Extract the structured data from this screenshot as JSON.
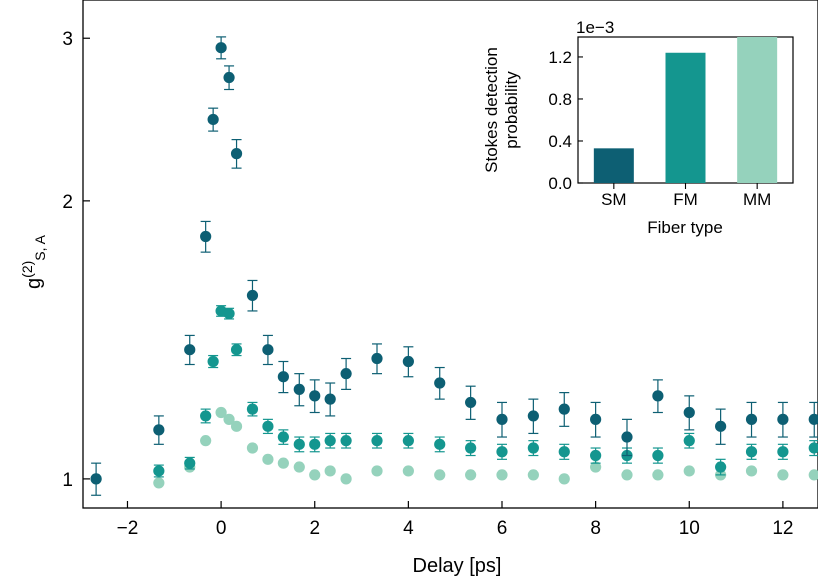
{
  "chart_data": [
    {
      "type": "scatter",
      "xlabel": "Delay [ps]",
      "ylabel_base": "g",
      "ylabel_sup": "(2)",
      "ylabel_sub": "S, A",
      "xlim": [
        -2.95,
        12.75
      ],
      "ylim": [
        0.93,
        3.3
      ],
      "yscale": "log",
      "x_ticks": [
        -2,
        0,
        2,
        4,
        6,
        8,
        10,
        12
      ],
      "x_tick_labels": [
        "−2",
        "0",
        "2",
        "4",
        "6",
        "8",
        "10",
        "12"
      ],
      "y_ticks": [
        1,
        2,
        3
      ],
      "y_tick_labels": [
        "1",
        "2",
        "3"
      ],
      "grid": false,
      "series": [
        {
          "color": "#0d5f73",
          "points": [
            {
              "x": -2.67,
              "y": 1.0,
              "err": 0.04
            },
            {
              "x": -1.33,
              "y": 1.13,
              "err": 0.04
            },
            {
              "x": -0.67,
              "y": 1.38,
              "err": 0.05
            },
            {
              "x": -0.33,
              "y": 1.83,
              "err": 0.07
            },
            {
              "x": -0.17,
              "y": 2.45,
              "err": 0.07
            },
            {
              "x": 0.0,
              "y": 2.93,
              "err": 0.08
            },
            {
              "x": 0.17,
              "y": 2.72,
              "err": 0.08
            },
            {
              "x": 0.33,
              "y": 2.25,
              "err": 0.08
            },
            {
              "x": 0.67,
              "y": 1.58,
              "err": 0.06
            },
            {
              "x": 1.0,
              "y": 1.38,
              "err": 0.05
            },
            {
              "x": 1.33,
              "y": 1.29,
              "err": 0.05
            },
            {
              "x": 1.67,
              "y": 1.25,
              "err": 0.05
            },
            {
              "x": 2.0,
              "y": 1.23,
              "err": 0.05
            },
            {
              "x": 2.33,
              "y": 1.22,
              "err": 0.05
            },
            {
              "x": 2.67,
              "y": 1.3,
              "err": 0.05
            },
            {
              "x": 3.33,
              "y": 1.35,
              "err": 0.05
            },
            {
              "x": 4.0,
              "y": 1.34,
              "err": 0.05
            },
            {
              "x": 4.67,
              "y": 1.27,
              "err": 0.05
            },
            {
              "x": 5.33,
              "y": 1.21,
              "err": 0.05
            },
            {
              "x": 6.0,
              "y": 1.16,
              "err": 0.05
            },
            {
              "x": 6.67,
              "y": 1.17,
              "err": 0.05
            },
            {
              "x": 7.33,
              "y": 1.19,
              "err": 0.05
            },
            {
              "x": 8.0,
              "y": 1.16,
              "err": 0.05
            },
            {
              "x": 8.67,
              "y": 1.11,
              "err": 0.05
            },
            {
              "x": 9.33,
              "y": 1.23,
              "err": 0.05
            },
            {
              "x": 10.0,
              "y": 1.18,
              "err": 0.05
            },
            {
              "x": 10.67,
              "y": 1.14,
              "err": 0.05
            },
            {
              "x": 11.33,
              "y": 1.16,
              "err": 0.05
            },
            {
              "x": 12.0,
              "y": 1.16,
              "err": 0.05
            },
            {
              "x": 12.67,
              "y": 1.16,
              "err": 0.05
            }
          ]
        },
        {
          "color": "#14968f",
          "points": [
            {
              "x": -1.33,
              "y": 1.02,
              "err": 0.015
            },
            {
              "x": -0.67,
              "y": 1.04,
              "err": 0.015
            },
            {
              "x": -0.33,
              "y": 1.17,
              "err": 0.02
            },
            {
              "x": -0.17,
              "y": 1.34,
              "err": 0.02
            },
            {
              "x": 0.0,
              "y": 1.52,
              "err": 0.02
            },
            {
              "x": 0.17,
              "y": 1.51,
              "err": 0.02
            },
            {
              "x": 0.33,
              "y": 1.38,
              "err": 0.02
            },
            {
              "x": 0.67,
              "y": 1.19,
              "err": 0.02
            },
            {
              "x": 1.0,
              "y": 1.14,
              "err": 0.02
            },
            {
              "x": 1.33,
              "y": 1.11,
              "err": 0.02
            },
            {
              "x": 1.67,
              "y": 1.09,
              "err": 0.02
            },
            {
              "x": 2.0,
              "y": 1.09,
              "err": 0.02
            },
            {
              "x": 2.33,
              "y": 1.1,
              "err": 0.02
            },
            {
              "x": 2.67,
              "y": 1.1,
              "err": 0.02
            },
            {
              "x": 3.33,
              "y": 1.1,
              "err": 0.02
            },
            {
              "x": 4.0,
              "y": 1.1,
              "err": 0.02
            },
            {
              "x": 4.67,
              "y": 1.09,
              "err": 0.02
            },
            {
              "x": 5.33,
              "y": 1.08,
              "err": 0.02
            },
            {
              "x": 6.0,
              "y": 1.07,
              "err": 0.02
            },
            {
              "x": 6.67,
              "y": 1.08,
              "err": 0.02
            },
            {
              "x": 7.33,
              "y": 1.07,
              "err": 0.02
            },
            {
              "x": 8.0,
              "y": 1.06,
              "err": 0.02
            },
            {
              "x": 8.67,
              "y": 1.06,
              "err": 0.02
            },
            {
              "x": 9.33,
              "y": 1.06,
              "err": 0.02
            },
            {
              "x": 10.0,
              "y": 1.1,
              "err": 0.02
            },
            {
              "x": 10.67,
              "y": 1.03,
              "err": 0.02
            },
            {
              "x": 11.33,
              "y": 1.07,
              "err": 0.02
            },
            {
              "x": 12.0,
              "y": 1.07,
              "err": 0.02
            },
            {
              "x": 12.67,
              "y": 1.08,
              "err": 0.02
            }
          ]
        },
        {
          "color": "#95d2bc",
          "points": [
            {
              "x": -2.67,
              "y": 1.0,
              "err": 0
            },
            {
              "x": -1.33,
              "y": 0.99,
              "err": 0
            },
            {
              "x": -0.67,
              "y": 1.03,
              "err": 0
            },
            {
              "x": -0.33,
              "y": 1.1,
              "err": 0
            },
            {
              "x": 0.0,
              "y": 1.18,
              "err": 0
            },
            {
              "x": 0.17,
              "y": 1.16,
              "err": 0
            },
            {
              "x": 0.33,
              "y": 1.14,
              "err": 0
            },
            {
              "x": 0.67,
              "y": 1.08,
              "err": 0
            },
            {
              "x": 1.0,
              "y": 1.05,
              "err": 0
            },
            {
              "x": 1.33,
              "y": 1.04,
              "err": 0
            },
            {
              "x": 1.67,
              "y": 1.03,
              "err": 0
            },
            {
              "x": 2.0,
              "y": 1.01,
              "err": 0
            },
            {
              "x": 2.33,
              "y": 1.02,
              "err": 0
            },
            {
              "x": 2.67,
              "y": 1.0,
              "err": 0
            },
            {
              "x": 3.33,
              "y": 1.02,
              "err": 0
            },
            {
              "x": 4.0,
              "y": 1.02,
              "err": 0
            },
            {
              "x": 4.67,
              "y": 1.01,
              "err": 0
            },
            {
              "x": 5.33,
              "y": 1.01,
              "err": 0
            },
            {
              "x": 6.0,
              "y": 1.01,
              "err": 0
            },
            {
              "x": 6.67,
              "y": 1.01,
              "err": 0
            },
            {
              "x": 7.33,
              "y": 1.0,
              "err": 0
            },
            {
              "x": 8.0,
              "y": 1.03,
              "err": 0
            },
            {
              "x": 8.67,
              "y": 1.01,
              "err": 0
            },
            {
              "x": 9.33,
              "y": 1.01,
              "err": 0
            },
            {
              "x": 10.0,
              "y": 1.02,
              "err": 0
            },
            {
              "x": 10.67,
              "y": 1.01,
              "err": 0
            },
            {
              "x": 11.33,
              "y": 1.02,
              "err": 0
            },
            {
              "x": 12.0,
              "y": 1.01,
              "err": 0
            },
            {
              "x": 12.67,
              "y": 1.01,
              "err": 0
            }
          ]
        }
      ]
    },
    {
      "type": "bar",
      "categories": [
        "SM",
        "FM",
        "MM"
      ],
      "values": [
        0.33,
        1.24,
        1.39
      ],
      "colors": [
        "#0d5f73",
        "#14968f",
        "#95d2bc"
      ],
      "xlabel": "Fiber type",
      "ylabel_line1": "Stokes detection",
      "ylabel_line2": "probability",
      "scale_label": "1e−3",
      "ylim": [
        0,
        1.39
      ],
      "y_ticks": [
        0.0,
        0.4,
        0.8,
        1.2
      ],
      "y_tick_labels": [
        "0.0",
        "0.4",
        "0.8",
        "1.2"
      ]
    }
  ]
}
